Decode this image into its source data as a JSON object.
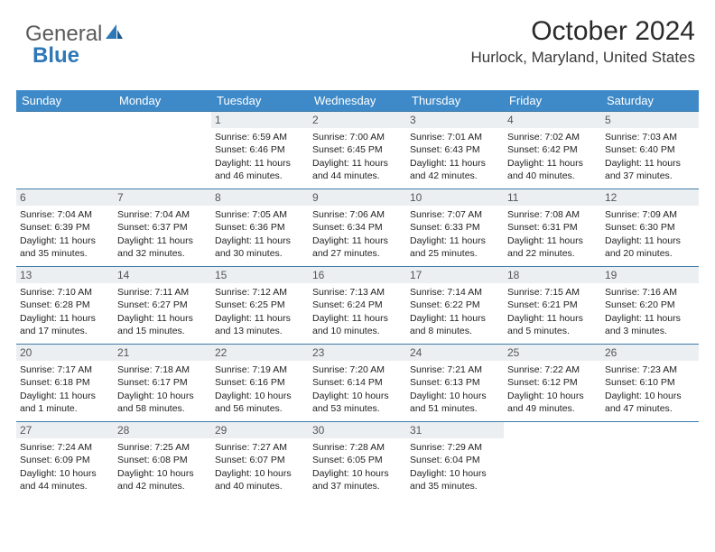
{
  "brand": {
    "part1": "General",
    "part2": "Blue"
  },
  "header": {
    "title": "October 2024",
    "location": "Hurlock, Maryland, United States"
  },
  "colors": {
    "header_bg": "#3e8ac8",
    "header_text": "#ffffff",
    "daynum_bg": "#eceff1",
    "row_divider": "#3e7aa8",
    "brand_blue": "#2f78b8"
  },
  "weekdays": [
    "Sunday",
    "Monday",
    "Tuesday",
    "Wednesday",
    "Thursday",
    "Friday",
    "Saturday"
  ],
  "weeks": [
    [
      null,
      null,
      {
        "n": "1",
        "sr": "Sunrise: 6:59 AM",
        "ss": "Sunset: 6:46 PM",
        "d1": "Daylight: 11 hours",
        "d2": "and 46 minutes."
      },
      {
        "n": "2",
        "sr": "Sunrise: 7:00 AM",
        "ss": "Sunset: 6:45 PM",
        "d1": "Daylight: 11 hours",
        "d2": "and 44 minutes."
      },
      {
        "n": "3",
        "sr": "Sunrise: 7:01 AM",
        "ss": "Sunset: 6:43 PM",
        "d1": "Daylight: 11 hours",
        "d2": "and 42 minutes."
      },
      {
        "n": "4",
        "sr": "Sunrise: 7:02 AM",
        "ss": "Sunset: 6:42 PM",
        "d1": "Daylight: 11 hours",
        "d2": "and 40 minutes."
      },
      {
        "n": "5",
        "sr": "Sunrise: 7:03 AM",
        "ss": "Sunset: 6:40 PM",
        "d1": "Daylight: 11 hours",
        "d2": "and 37 minutes."
      }
    ],
    [
      {
        "n": "6",
        "sr": "Sunrise: 7:04 AM",
        "ss": "Sunset: 6:39 PM",
        "d1": "Daylight: 11 hours",
        "d2": "and 35 minutes."
      },
      {
        "n": "7",
        "sr": "Sunrise: 7:04 AM",
        "ss": "Sunset: 6:37 PM",
        "d1": "Daylight: 11 hours",
        "d2": "and 32 minutes."
      },
      {
        "n": "8",
        "sr": "Sunrise: 7:05 AM",
        "ss": "Sunset: 6:36 PM",
        "d1": "Daylight: 11 hours",
        "d2": "and 30 minutes."
      },
      {
        "n": "9",
        "sr": "Sunrise: 7:06 AM",
        "ss": "Sunset: 6:34 PM",
        "d1": "Daylight: 11 hours",
        "d2": "and 27 minutes."
      },
      {
        "n": "10",
        "sr": "Sunrise: 7:07 AM",
        "ss": "Sunset: 6:33 PM",
        "d1": "Daylight: 11 hours",
        "d2": "and 25 minutes."
      },
      {
        "n": "11",
        "sr": "Sunrise: 7:08 AM",
        "ss": "Sunset: 6:31 PM",
        "d1": "Daylight: 11 hours",
        "d2": "and 22 minutes."
      },
      {
        "n": "12",
        "sr": "Sunrise: 7:09 AM",
        "ss": "Sunset: 6:30 PM",
        "d1": "Daylight: 11 hours",
        "d2": "and 20 minutes."
      }
    ],
    [
      {
        "n": "13",
        "sr": "Sunrise: 7:10 AM",
        "ss": "Sunset: 6:28 PM",
        "d1": "Daylight: 11 hours",
        "d2": "and 17 minutes."
      },
      {
        "n": "14",
        "sr": "Sunrise: 7:11 AM",
        "ss": "Sunset: 6:27 PM",
        "d1": "Daylight: 11 hours",
        "d2": "and 15 minutes."
      },
      {
        "n": "15",
        "sr": "Sunrise: 7:12 AM",
        "ss": "Sunset: 6:25 PM",
        "d1": "Daylight: 11 hours",
        "d2": "and 13 minutes."
      },
      {
        "n": "16",
        "sr": "Sunrise: 7:13 AM",
        "ss": "Sunset: 6:24 PM",
        "d1": "Daylight: 11 hours",
        "d2": "and 10 minutes."
      },
      {
        "n": "17",
        "sr": "Sunrise: 7:14 AM",
        "ss": "Sunset: 6:22 PM",
        "d1": "Daylight: 11 hours",
        "d2": "and 8 minutes."
      },
      {
        "n": "18",
        "sr": "Sunrise: 7:15 AM",
        "ss": "Sunset: 6:21 PM",
        "d1": "Daylight: 11 hours",
        "d2": "and 5 minutes."
      },
      {
        "n": "19",
        "sr": "Sunrise: 7:16 AM",
        "ss": "Sunset: 6:20 PM",
        "d1": "Daylight: 11 hours",
        "d2": "and 3 minutes."
      }
    ],
    [
      {
        "n": "20",
        "sr": "Sunrise: 7:17 AM",
        "ss": "Sunset: 6:18 PM",
        "d1": "Daylight: 11 hours",
        "d2": "and 1 minute."
      },
      {
        "n": "21",
        "sr": "Sunrise: 7:18 AM",
        "ss": "Sunset: 6:17 PM",
        "d1": "Daylight: 10 hours",
        "d2": "and 58 minutes."
      },
      {
        "n": "22",
        "sr": "Sunrise: 7:19 AM",
        "ss": "Sunset: 6:16 PM",
        "d1": "Daylight: 10 hours",
        "d2": "and 56 minutes."
      },
      {
        "n": "23",
        "sr": "Sunrise: 7:20 AM",
        "ss": "Sunset: 6:14 PM",
        "d1": "Daylight: 10 hours",
        "d2": "and 53 minutes."
      },
      {
        "n": "24",
        "sr": "Sunrise: 7:21 AM",
        "ss": "Sunset: 6:13 PM",
        "d1": "Daylight: 10 hours",
        "d2": "and 51 minutes."
      },
      {
        "n": "25",
        "sr": "Sunrise: 7:22 AM",
        "ss": "Sunset: 6:12 PM",
        "d1": "Daylight: 10 hours",
        "d2": "and 49 minutes."
      },
      {
        "n": "26",
        "sr": "Sunrise: 7:23 AM",
        "ss": "Sunset: 6:10 PM",
        "d1": "Daylight: 10 hours",
        "d2": "and 47 minutes."
      }
    ],
    [
      {
        "n": "27",
        "sr": "Sunrise: 7:24 AM",
        "ss": "Sunset: 6:09 PM",
        "d1": "Daylight: 10 hours",
        "d2": "and 44 minutes."
      },
      {
        "n": "28",
        "sr": "Sunrise: 7:25 AM",
        "ss": "Sunset: 6:08 PM",
        "d1": "Daylight: 10 hours",
        "d2": "and 42 minutes."
      },
      {
        "n": "29",
        "sr": "Sunrise: 7:27 AM",
        "ss": "Sunset: 6:07 PM",
        "d1": "Daylight: 10 hours",
        "d2": "and 40 minutes."
      },
      {
        "n": "30",
        "sr": "Sunrise: 7:28 AM",
        "ss": "Sunset: 6:05 PM",
        "d1": "Daylight: 10 hours",
        "d2": "and 37 minutes."
      },
      {
        "n": "31",
        "sr": "Sunrise: 7:29 AM",
        "ss": "Sunset: 6:04 PM",
        "d1": "Daylight: 10 hours",
        "d2": "and 35 minutes."
      },
      null,
      null
    ]
  ]
}
